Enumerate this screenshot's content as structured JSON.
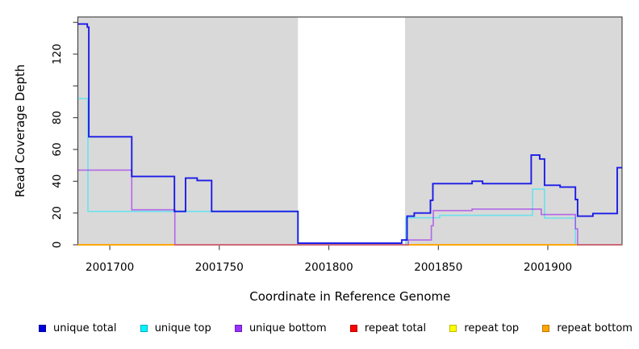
{
  "chart_data": {
    "type": "line",
    "subtype": "step",
    "title": "",
    "xlabel": "Coordinate in Reference Genome",
    "ylabel": "Read Coverage Depth",
    "xlim": [
      2001685.4,
      2001933.9
    ],
    "ylim": [
      0,
      143.4
    ],
    "grid": false,
    "legend_position": "bottom",
    "page_background": "#ffffff",
    "plot_background": "#d9d9d9",
    "frame_color": "#3c3c3c",
    "gap_band": {
      "from": 2001785.9,
      "to": 2001834.8,
      "color": "#ffffff"
    },
    "x_ticks": [
      {
        "value": 2001700,
        "label": "2001700"
      },
      {
        "value": 2001750,
        "label": "2001750"
      },
      {
        "value": 2001800,
        "label": "2001800"
      },
      {
        "value": 2001850,
        "label": "2001850"
      },
      {
        "value": 2001900,
        "label": "2001900"
      }
    ],
    "y_ticks": [
      {
        "value": 0,
        "label": "0"
      },
      {
        "value": 20,
        "label": "20"
      },
      {
        "value": 40,
        "label": "40"
      },
      {
        "value": 60,
        "label": "60"
      },
      {
        "value": 80,
        "label": "80"
      },
      {
        "value": 100,
        "label": ""
      },
      {
        "value": 120,
        "label": "120"
      },
      {
        "value": 140,
        "label": ""
      }
    ],
    "series": [
      {
        "name": "repeat total",
        "color": "#e00000",
        "opacity": 1,
        "width": 1.6,
        "points": [
          [
            2001685.4,
            0
          ]
        ]
      },
      {
        "name": "repeat top",
        "color": "#ffff00",
        "opacity": 1,
        "width": 1.6,
        "points": [
          [
            2001685.4,
            0
          ]
        ]
      },
      {
        "name": "unique top",
        "color": "#00eaff",
        "opacity": 0.5,
        "width": 1.6,
        "points": [
          [
            2001685.4,
            92
          ],
          [
            2001690,
            21
          ],
          [
            2001785.9,
            0
          ],
          [
            2001835.2,
            17
          ],
          [
            2001850.6,
            18.5
          ],
          [
            2001893,
            35
          ],
          [
            2001898.5,
            16.8
          ],
          [
            2001912.6,
            0
          ]
        ]
      },
      {
        "name": "repeat bottom",
        "color": "#ffa500",
        "opacity": 1,
        "width": 1.8,
        "points": [
          [
            2001685.4,
            0
          ]
        ]
      },
      {
        "name": "unique bottom",
        "color": "#9a20f0",
        "opacity": 0.62,
        "width": 1.6,
        "points": [
          [
            2001685.4,
            47
          ],
          [
            2001710,
            22
          ],
          [
            2001729.7,
            0
          ],
          [
            2001836.3,
            3
          ],
          [
            2001846.8,
            12
          ],
          [
            2001847.7,
            21.5
          ],
          [
            2001865.4,
            22.5
          ],
          [
            2001897,
            19
          ],
          [
            2001912.6,
            10
          ],
          [
            2001913.6,
            0
          ]
        ]
      },
      {
        "name": "unique total",
        "color": "#0000e8",
        "opacity": 0.88,
        "width": 1.9,
        "points": [
          [
            2001685.4,
            139
          ],
          [
            2001689.7,
            137
          ],
          [
            2001690.4,
            68
          ],
          [
            2001710,
            43
          ],
          [
            2001729.5,
            21
          ],
          [
            2001734.6,
            42
          ],
          [
            2001739.9,
            40.5
          ],
          [
            2001746.5,
            21
          ],
          [
            2001785.9,
            1
          ],
          [
            2001833.3,
            3
          ],
          [
            2001835.7,
            18
          ],
          [
            2001839,
            20
          ],
          [
            2001846.4,
            28
          ],
          [
            2001847.5,
            38.5
          ],
          [
            2001865.4,
            40
          ],
          [
            2001870.2,
            38.5
          ],
          [
            2001892.4,
            56.5
          ],
          [
            2001896.3,
            54
          ],
          [
            2001898.5,
            37.5
          ],
          [
            2001905.6,
            36.3
          ],
          [
            2001912.6,
            28.5
          ],
          [
            2001913.6,
            18
          ],
          [
            2001920.6,
            19.7
          ],
          [
            2001931.7,
            48.5
          ]
        ]
      }
    ]
  },
  "legend": {
    "items": [
      {
        "label": "unique total",
        "color": "#0000dd",
        "border": "#00009a"
      },
      {
        "label": "unique top",
        "color": "#00f5ff",
        "border": "#00aac8"
      },
      {
        "label": "unique bottom",
        "color": "#9b30ff",
        "border": "#6a1fb4"
      },
      {
        "label": "repeat total",
        "color": "#ff0000",
        "border": "#b40000"
      },
      {
        "label": "repeat top",
        "color": "#ffff00",
        "border": "#bcbc00"
      },
      {
        "label": "repeat bottom",
        "color": "#ffa500",
        "border": "#c07800"
      }
    ]
  }
}
